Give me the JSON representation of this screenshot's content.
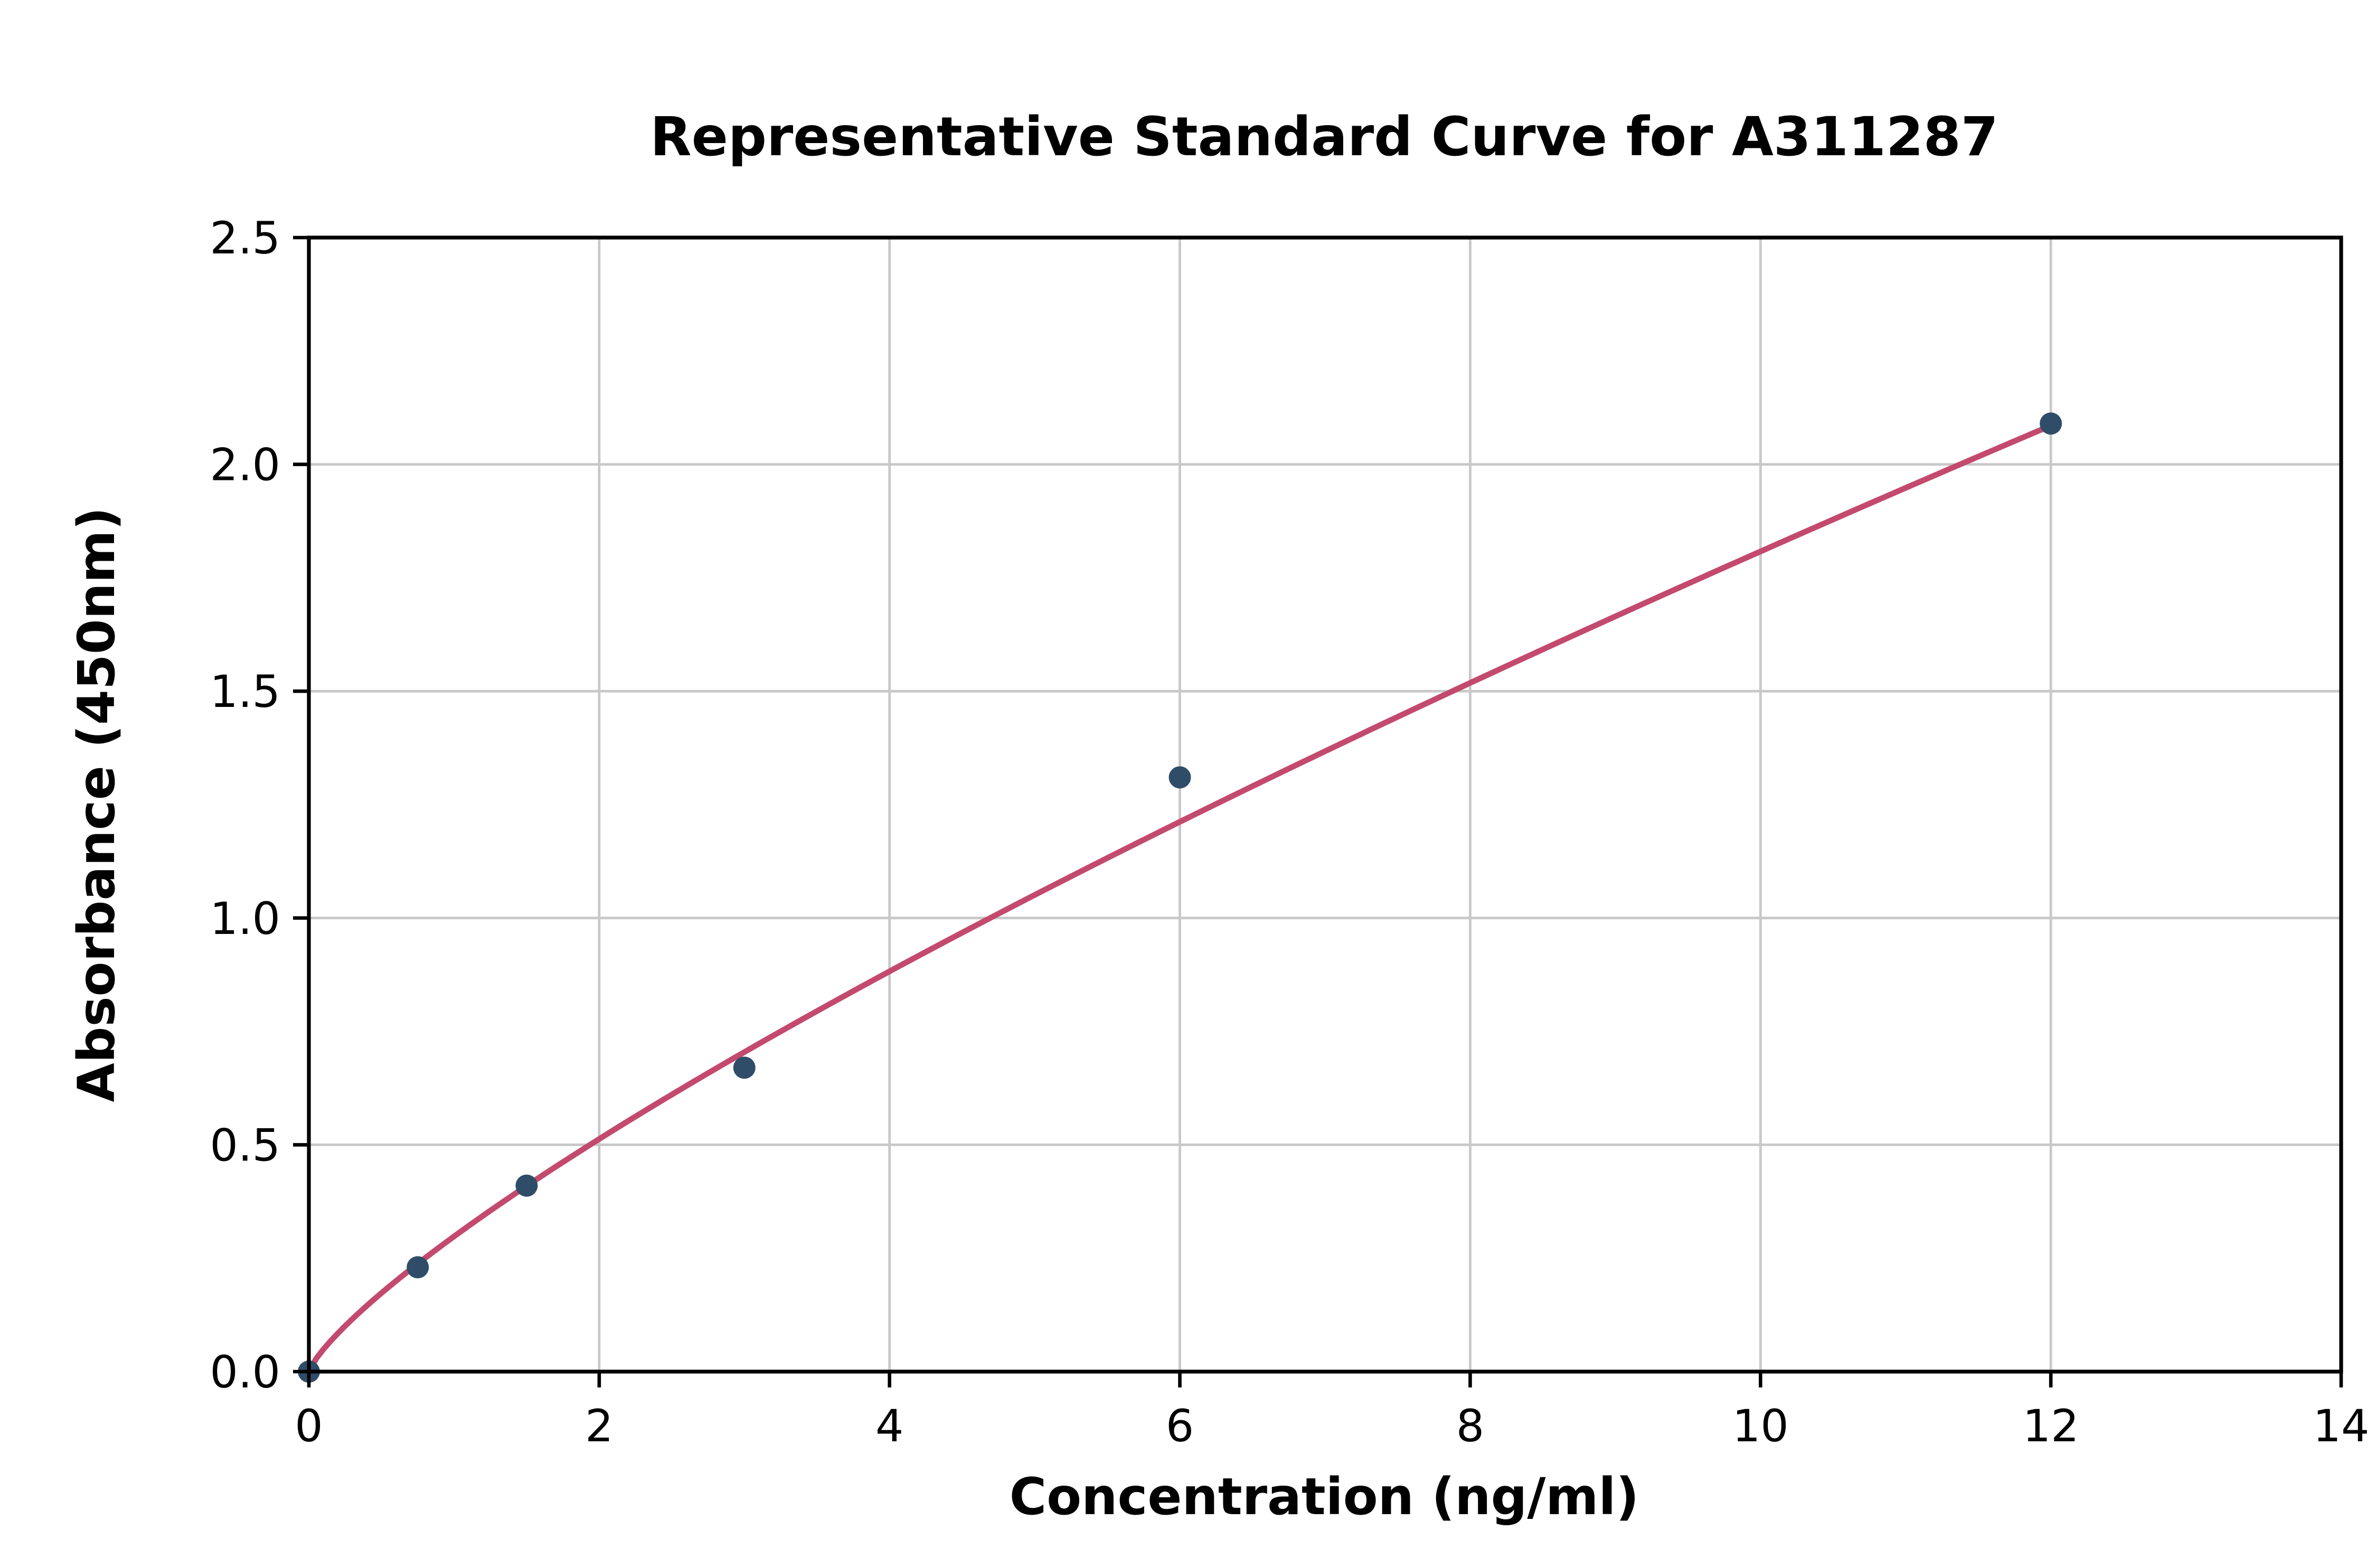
{
  "chart_data": {
    "type": "scatter",
    "title": "Representative Standard Curve for A311287",
    "xlabel": "Concentration (ng/ml)",
    "ylabel": "Absorbance (450nm)",
    "xlim": [
      0,
      14
    ],
    "ylim": [
      0,
      2.5
    ],
    "grid": true,
    "xticks": {
      "values": [
        0,
        2,
        4,
        6,
        8,
        10,
        12,
        14
      ],
      "labels": [
        "0",
        "2",
        "4",
        "6",
        "8",
        "10",
        "12",
        "14"
      ]
    },
    "yticks": {
      "values": [
        0,
        0.5,
        1.0,
        1.5,
        2.0,
        2.5
      ],
      "labels": [
        "0.0",
        "0.5",
        "1.0",
        "1.5",
        "2.0",
        "2.5"
      ]
    },
    "points": [
      {
        "x": 0,
        "y": 0.0
      },
      {
        "x": 0.75,
        "y": 0.23
      },
      {
        "x": 1.5,
        "y": 0.41
      },
      {
        "x": 3,
        "y": 0.67
      },
      {
        "x": 6,
        "y": 1.31
      },
      {
        "x": 12,
        "y": 2.09
      }
    ],
    "curve": {
      "type": "power",
      "a": 0.298,
      "b": 0.783,
      "x_start": 0,
      "x_end": 12
    },
    "colors": {
      "point": "#2f4d68",
      "curve": "#c34a6e",
      "grid": "#c8c8c8",
      "axis": "#000000",
      "background": "#ffffff"
    }
  }
}
